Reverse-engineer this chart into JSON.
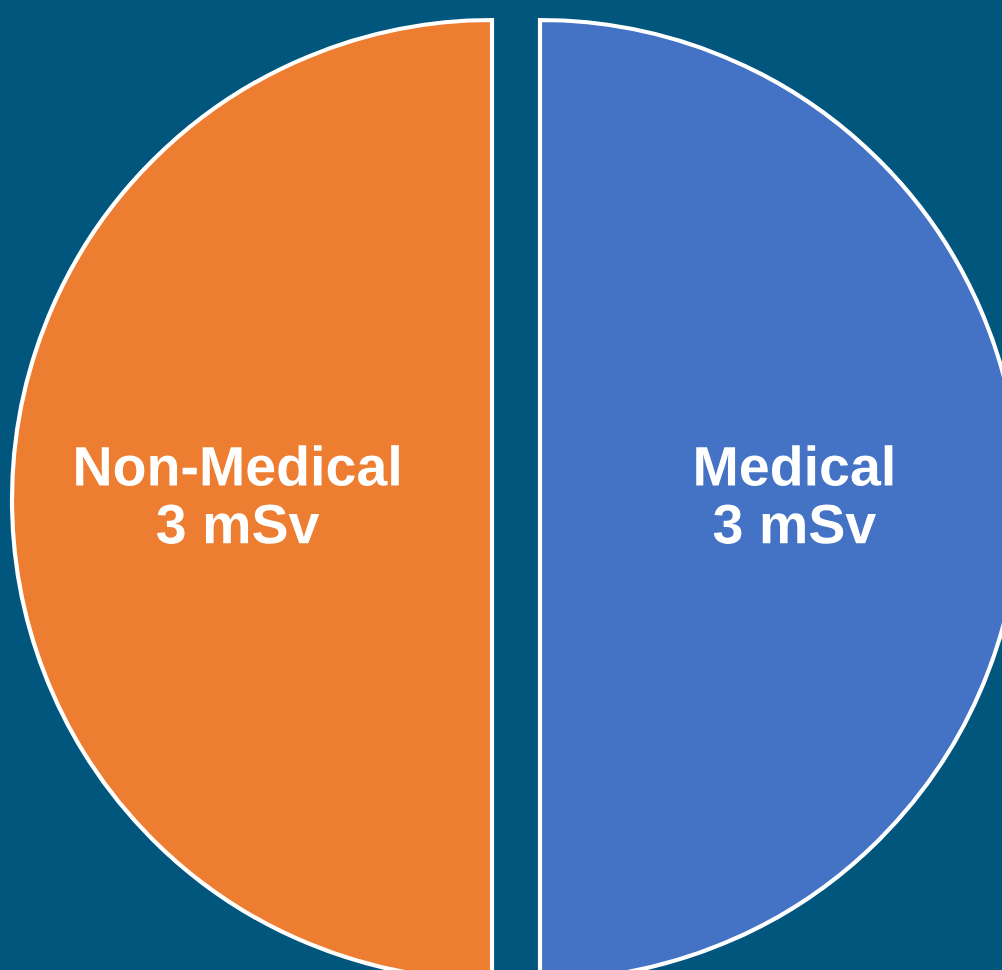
{
  "chart_data": {
    "type": "pie",
    "categories": [
      "Non-Medical",
      "Medical"
    ],
    "values": [
      3,
      3
    ],
    "value_labels": [
      "3 mSv",
      "3 mSv"
    ],
    "colors": [
      "#ed7d31",
      "#4472c4"
    ]
  }
}
